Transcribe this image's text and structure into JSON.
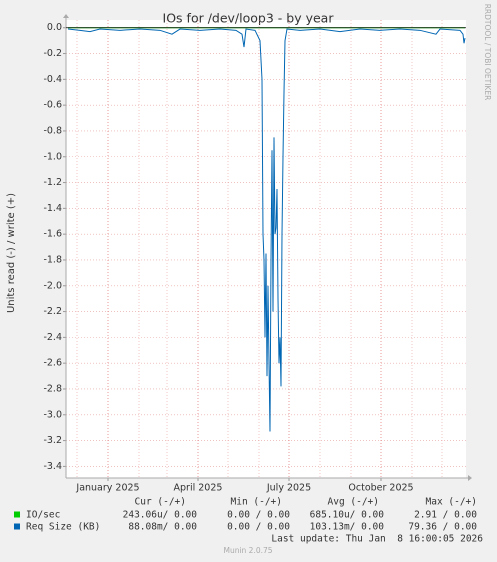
{
  "chart_data": {
    "type": "line",
    "title": "IOs for /dev/loop3 - by year",
    "y_label": "Units read (-) / write (+)",
    "watermark": "RRDTOOL / TOBI OETIKER",
    "xlim": [
      -42,
      358
    ],
    "xticks": [
      {
        "value": 0,
        "label": "January 2025"
      },
      {
        "value": 90,
        "label": "April 2025"
      },
      {
        "value": 181,
        "label": "July 2025"
      },
      {
        "value": 273,
        "label": "October 2025"
      }
    ],
    "xminorticks": [
      -31,
      31,
      59,
      120,
      151,
      212,
      243,
      304,
      334
    ],
    "ylim": [
      -3.49,
      0.06
    ],
    "yticks": [
      {
        "value": 0,
        "label": "0.0"
      },
      -0.2,
      -0.4,
      -0.6,
      -0.8,
      {
        "value": -1,
        "label": "-1.0"
      },
      -1.2,
      -1.4,
      -1.6,
      -1.8,
      {
        "value": -2,
        "label": "-2.0"
      },
      -2.2,
      -2.4,
      -2.6,
      -2.8,
      {
        "value": -3,
        "label": "-3.0"
      },
      -3.2,
      -3.4
    ],
    "grid": true,
    "legend_columns": [
      "Cur (-/+)",
      "Min (-/+)",
      "Avg (-/+)",
      "Max (-/+)"
    ],
    "series": [
      {
        "name": "IO/sec",
        "color": "#00cc00",
        "x": [
          -40,
          100,
          200,
          357
        ],
        "values": [
          0,
          0,
          0,
          0
        ],
        "stats": [
          "243.06u/ 0.00",
          "0.00 / 0.00",
          "685.10u/ 0.00",
          "2.91 / 0.00"
        ]
      },
      {
        "name": "Req Size (KB)",
        "color": "#0066b3",
        "x": [
          -40,
          -28,
          -18,
          -8,
          12,
          32,
          52,
          64,
          72,
          92,
          112,
          128,
          134,
          136,
          138,
          147,
          152,
          154,
          155,
          156,
          157,
          158,
          159,
          160,
          161,
          162,
          163,
          164,
          165,
          166,
          167,
          168,
          169,
          170,
          171,
          172,
          173,
          174,
          175,
          176,
          177,
          179,
          192,
          212,
          232,
          252,
          272,
          292,
          312,
          328,
          332,
          352,
          355,
          356,
          357
        ],
        "values": [
          -0.01,
          -0.02,
          -0.03,
          -0.01,
          -0.02,
          -0.01,
          -0.02,
          -0.05,
          -0.01,
          -0.02,
          -0.01,
          -0.02,
          -0.05,
          -0.15,
          -0.01,
          -0.02,
          -0.1,
          -0.4,
          -1.6,
          -1.8,
          -2.4,
          -1.75,
          -2.7,
          -2.0,
          -2.6,
          -3.13,
          -1.8,
          -0.95,
          -2.2,
          -0.85,
          -1.6,
          -1.55,
          -1.25,
          -2.1,
          -2.6,
          -2.4,
          -2.78,
          -1.6,
          -1.0,
          -0.5,
          -0.1,
          -0.01,
          -0.02,
          -0.01,
          -0.03,
          -0.01,
          -0.02,
          -0.01,
          -0.02,
          -0.05,
          -0.01,
          -0.02,
          -0.05,
          -0.12,
          -0.08
        ],
        "stats": [
          "88.08m/ 0.00",
          "0.00 / 0.00",
          "103.13m/ 0.00",
          "79.36 / 0.00"
        ]
      }
    ],
    "last_update": "Last update: Thu Jan  8 16:00:05 2026",
    "footer": "Munin 2.0.75"
  }
}
